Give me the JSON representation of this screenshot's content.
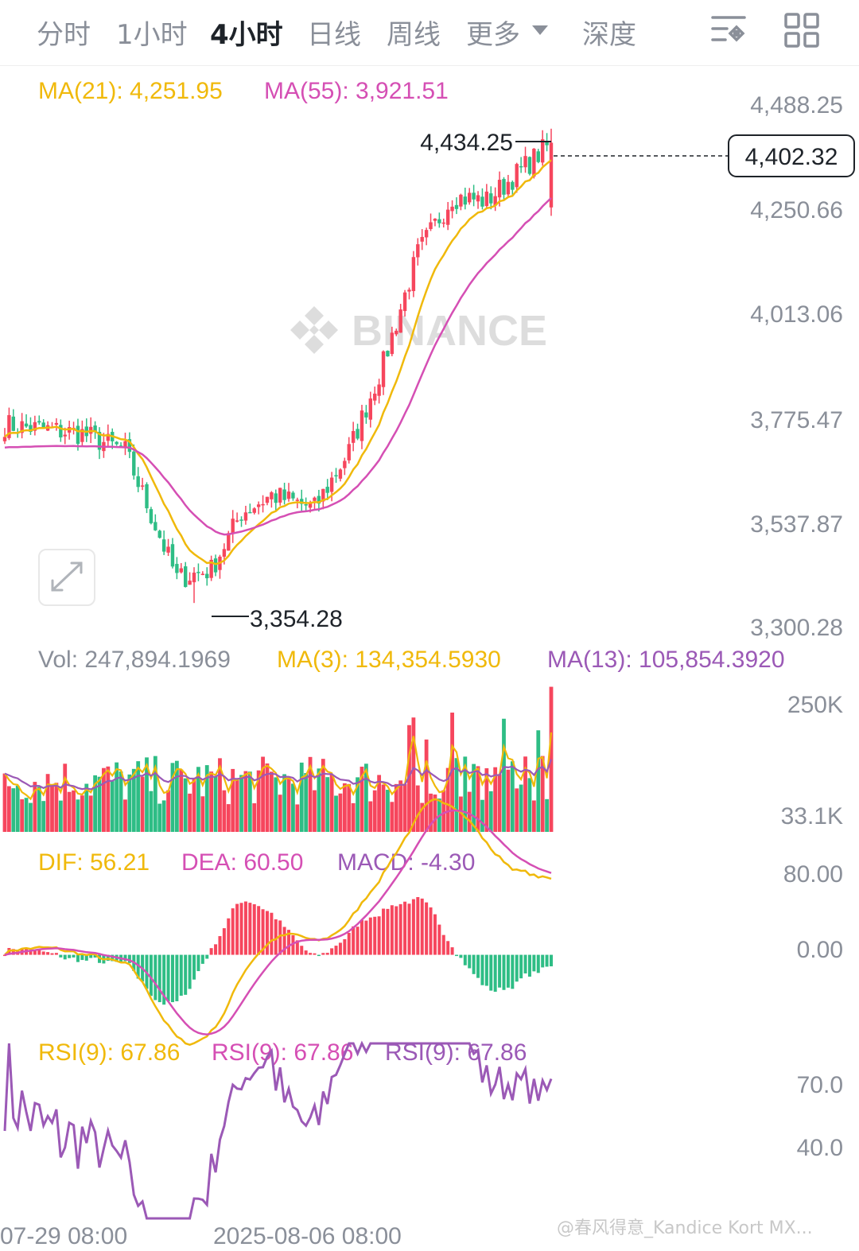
{
  "tabs": [
    {
      "label": "分时",
      "active": false
    },
    {
      "label": "1小时",
      "active": false
    },
    {
      "label": "4小时",
      "active": true
    },
    {
      "label": "日线",
      "active": false
    },
    {
      "label": "周线",
      "active": false
    },
    {
      "label": "更多",
      "active": false
    },
    {
      "label": "深度",
      "active": false
    }
  ],
  "icons": {
    "more_dropdown": "caret-down-icon",
    "settings": "indicator-settings-icon",
    "layout": "grid-icon",
    "expand": "expand-icon"
  },
  "colors": {
    "up": "#f6465d",
    "down": "#2ebd85",
    "ma_yellow": "#f0b90b",
    "ma_pink": "#d54fb4",
    "purple": "#9b59b6",
    "text_gray": "#8a8f99"
  },
  "price_panel": {
    "ma21_label": "MA(21): 4,251.95",
    "ma55_label": "MA(55): 3,921.51",
    "y_ticks": [
      "4,488.25",
      "4,250.66",
      "4,013.06",
      "3,775.47",
      "3,537.87",
      "3,300.28"
    ],
    "current_price": "4,402.32",
    "high_label": "4,434.25",
    "low_label": "3,354.28",
    "watermark": "BINANCE"
  },
  "volume_panel": {
    "vol_label": "Vol: 247,894.1969",
    "ma3_label": "MA(3): 134,354.5930",
    "ma13_label": "MA(13): 105,854.3920",
    "y_ticks": [
      "250K",
      "33.1K"
    ]
  },
  "macd_panel": {
    "dif_label": "DIF: 56.21",
    "dea_label": "DEA: 60.50",
    "macd_label": "MACD: -4.30",
    "y_ticks": [
      "80.00",
      "0.00"
    ]
  },
  "rsi_panel": {
    "rsi_labels": [
      "RSI(9): 67.86",
      "RSI(9): 67.86",
      "RSI(9): 67.86"
    ],
    "y_ticks": [
      "70.0",
      "40.0"
    ]
  },
  "x_axis_labels": [
    "07-29 08:00",
    "2025-08-06 08:00"
  ],
  "footer_watermark": "@春风得意_Kandice Kort MX...",
  "chart_data": {
    "type": "candlestick",
    "interval": "4h",
    "price_range": [
      3300.28,
      4488.25
    ],
    "anchors": {
      "start_close": 3760,
      "min": 3354.28,
      "max": 4434.25,
      "last_close": 4402.32
    },
    "trend_keypoints": [
      [
        0,
        3760
      ],
      [
        18,
        3740
      ],
      [
        28,
        3700
      ],
      [
        40,
        3410
      ],
      [
        48,
        3430
      ],
      [
        55,
        3560
      ],
      [
        62,
        3600
      ],
      [
        72,
        3570
      ],
      [
        80,
        3700
      ],
      [
        88,
        3900
      ],
      [
        96,
        4150
      ],
      [
        104,
        4280
      ],
      [
        112,
        4270
      ],
      [
        120,
        4340
      ],
      [
        127,
        4402
      ]
    ],
    "volume_range": [
      0,
      250000
    ],
    "macd_range": [
      -60,
      80
    ],
    "rsi_range": [
      20,
      80
    ]
  }
}
